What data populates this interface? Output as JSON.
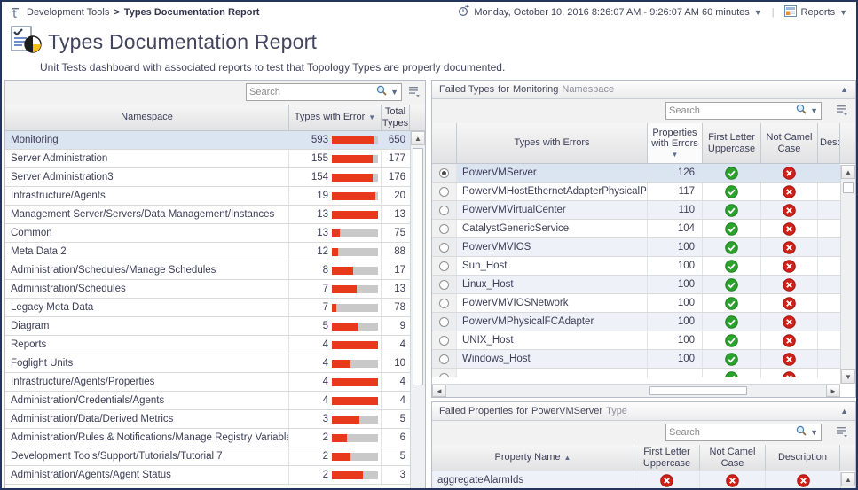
{
  "breadcrumb": {
    "parent": "Development Tools",
    "separator": ">",
    "current": "Types Documentation Report"
  },
  "topbar": {
    "time_range": "Monday, October 10, 2016 8:26:07 AM - 9:26:07 AM 60 minutes",
    "reports_label": "Reports"
  },
  "header": {
    "title": "Types Documentation Report",
    "subtitle": "Unit Tests dashboard with associated reports to test that Topology Types are properly documented."
  },
  "colors": {
    "bar_red": "#e8391d",
    "bar_track": "#c9c9c9",
    "pass_green": "#2da12e",
    "fail_red": "#d02018",
    "selected_row": "#dbe4f1",
    "stripe_row": "#eef2f8"
  },
  "namespace_table": {
    "search_placeholder": "Search",
    "columns": {
      "namespace": "Namespace",
      "errors": "Types with Error",
      "total": "Total Types"
    },
    "sort": {
      "column": "Types with Error",
      "direction": "desc"
    },
    "rows": [
      {
        "namespace": "Monitoring",
        "errors": 593,
        "total": 650,
        "selected": true
      },
      {
        "namespace": "Server Administration",
        "errors": 155,
        "total": 177
      },
      {
        "namespace": "Server Administration3",
        "errors": 154,
        "total": 176
      },
      {
        "namespace": "Infrastructure/Agents",
        "errors": 19,
        "total": 20
      },
      {
        "namespace": "Management Server/Servers/Data Management/Instances",
        "errors": 13,
        "total": 13
      },
      {
        "namespace": "Common",
        "errors": 13,
        "total": 75
      },
      {
        "namespace": "Meta Data 2",
        "errors": 12,
        "total": 88
      },
      {
        "namespace": "Administration/Schedules/Manage Schedules",
        "errors": 8,
        "total": 17
      },
      {
        "namespace": "Administration/Schedules",
        "errors": 7,
        "total": 13
      },
      {
        "namespace": "Legacy Meta Data",
        "errors": 7,
        "total": 78
      },
      {
        "namespace": "Diagram",
        "errors": 5,
        "total": 9
      },
      {
        "namespace": "Reports",
        "errors": 4,
        "total": 4
      },
      {
        "namespace": "Foglight Units",
        "errors": 4,
        "total": 10
      },
      {
        "namespace": "Infrastructure/Agents/Properties",
        "errors": 4,
        "total": 4
      },
      {
        "namespace": "Administration/Credentials/Agents",
        "errors": 4,
        "total": 4
      },
      {
        "namespace": "Administration/Data/Derived Metrics",
        "errors": 3,
        "total": 5
      },
      {
        "namespace": "Administration/Rules & Notifications/Manage Registry Variables",
        "errors": 2,
        "total": 6
      },
      {
        "namespace": "Development Tools/Support/Tutorials/Tutorial 7",
        "errors": 2,
        "total": 5
      },
      {
        "namespace": "Administration/Agents/Agent Status",
        "errors": 2,
        "total": 3
      }
    ]
  },
  "failed_types_panel": {
    "title_parts": [
      {
        "text": "Failed Types",
        "muted": false
      },
      {
        "text": "for",
        "muted": false
      },
      {
        "text": "Monitoring",
        "muted": false
      },
      {
        "text": "Namespace",
        "muted": true
      }
    ],
    "search_placeholder": "Search",
    "columns": {
      "type": "Types with Errors",
      "props": "Properties with Errors",
      "flu": "First Letter Uppercase",
      "ncc": "Not Camel Case",
      "des": "Description"
    },
    "sort": {
      "column": "Properties with Errors",
      "direction": "desc"
    },
    "rows": [
      {
        "name": "PowerVMServer",
        "props": 126,
        "flu": "pass",
        "ncc": "fail",
        "selected": true
      },
      {
        "name": "PowerVMHostEthernetAdapterPhysicalPort",
        "props": 117,
        "flu": "pass",
        "ncc": "fail"
      },
      {
        "name": "PowerVMVirtualCenter",
        "props": 110,
        "flu": "pass",
        "ncc": "fail"
      },
      {
        "name": "CatalystGenericService",
        "props": 104,
        "flu": "pass",
        "ncc": "fail"
      },
      {
        "name": "PowerVMVIOS",
        "props": 100,
        "flu": "pass",
        "ncc": "fail"
      },
      {
        "name": "Sun_Host",
        "props": 100,
        "flu": "pass",
        "ncc": "fail"
      },
      {
        "name": "Linux_Host",
        "props": 100,
        "flu": "pass",
        "ncc": "fail"
      },
      {
        "name": "PowerVMVIOSNetwork",
        "props": 100,
        "flu": "pass",
        "ncc": "fail"
      },
      {
        "name": "PowerVMPhysicalFCAdapter",
        "props": 100,
        "flu": "pass",
        "ncc": "fail"
      },
      {
        "name": "UNIX_Host",
        "props": 100,
        "flu": "pass",
        "ncc": "fail"
      },
      {
        "name": "Windows_Host",
        "props": 100,
        "flu": "pass",
        "ncc": "fail"
      }
    ],
    "partial_row": {
      "flu": "pass",
      "ncc": "fail"
    }
  },
  "failed_properties_panel": {
    "title_parts": [
      {
        "text": "Failed Properties",
        "muted": false
      },
      {
        "text": "for",
        "muted": false
      },
      {
        "text": "PowerVMServer",
        "muted": false
      },
      {
        "text": "Type",
        "muted": true
      }
    ],
    "search_placeholder": "Search",
    "columns": {
      "name": "Property Name",
      "flu": "First Letter Uppercase",
      "ncc": "Not Camel Case",
      "desc": "Description"
    },
    "sort": {
      "column": "Property Name",
      "direction": "asc"
    },
    "rows": [
      {
        "name": "aggregateAlarmIds",
        "flu": "fail",
        "ncc": "fail",
        "desc": "fail"
      }
    ]
  },
  "glyphs": {
    "sort_desc": "▼",
    "sort_asc": "▲",
    "collapse_up": "▲",
    "caret_down": "▼",
    "scroll_up": "▲",
    "scroll_down": "▼",
    "scroll_left": "◄",
    "scroll_right": "►",
    "divider": "|"
  }
}
